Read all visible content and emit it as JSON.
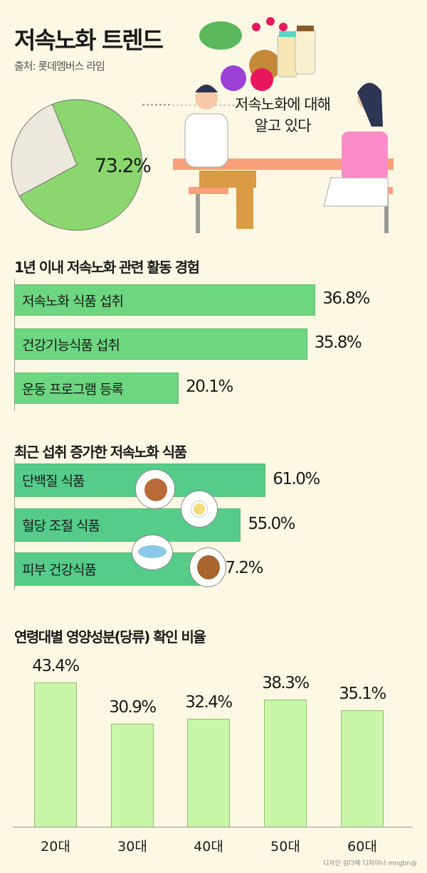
{
  "title": "저속노화 트렌드",
  "source": "출처: 롯데멤버스 라임",
  "pie": {
    "label": "73.2%",
    "callout_line1": "저속노화에 대해",
    "callout_line2": "알고 있다",
    "colors": {
      "main": "#8bd66e",
      "rest": "#ece8de"
    }
  },
  "chart_data": [
    {
      "type": "pie",
      "values": [
        73.2,
        26.8
      ],
      "data_labels": [
        "73.2%"
      ]
    },
    {
      "type": "bar",
      "orientation": "horizontal",
      "title": "1년 이내 저속노화 관련 활동 경험",
      "categories": [
        "저속노화 식품 섭취",
        "건강기능식품 섭취",
        "운동 프로그램 등록"
      ],
      "values": [
        36.8,
        35.8,
        20.1
      ],
      "data_labels": [
        "36.8%",
        "35.8%",
        "20.1%"
      ],
      "color": "#6dd680"
    },
    {
      "type": "bar",
      "orientation": "horizontal",
      "title": "최근 섭취 증가한 저속노화 식품",
      "categories": [
        "단백질 식품",
        "혈당 조절 식품",
        "피부 건강식품"
      ],
      "values": [
        61.0,
        55.0,
        47.2
      ],
      "data_labels": [
        "61.0%",
        "55.0%",
        "47.2%"
      ],
      "color": "#55cc8a"
    },
    {
      "type": "bar",
      "orientation": "vertical",
      "title": "연령대별 영양성분(당류) 확인 비율",
      "categories": [
        "20대",
        "30대",
        "40대",
        "50대",
        "60대"
      ],
      "values": [
        43.4,
        30.9,
        32.4,
        38.3,
        35.1
      ],
      "data_labels": [
        "43.4%",
        "30.9%",
        "32.4%",
        "38.3%",
        "35.1%"
      ],
      "color": "#c9f5a8"
    }
  ],
  "credit": "디자인 김다예 디자이너 mngbn@"
}
